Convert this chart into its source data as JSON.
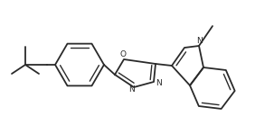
{
  "background_color": "#ffffff",
  "line_color": "#2a2a2a",
  "line_width": 1.3,
  "font_size": 6.5,
  "figsize": [
    3.03,
    1.39
  ],
  "dpi": 100,
  "xlim": [
    0,
    303
  ],
  "ylim": [
    0,
    139
  ]
}
